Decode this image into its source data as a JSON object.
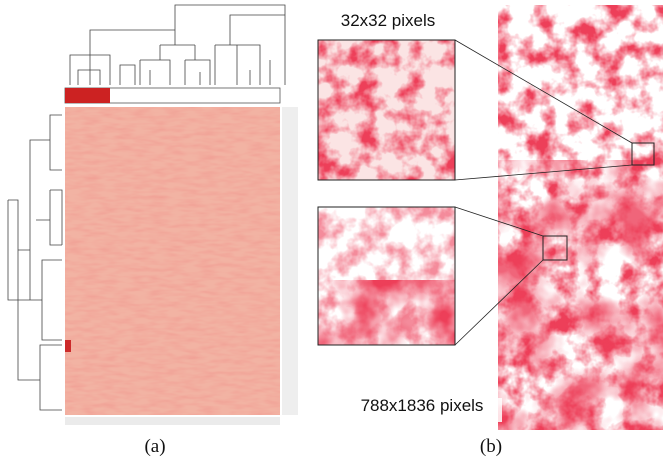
{
  "figure": {
    "panel_a": {
      "caption": "(a)"
    },
    "panel_b": {
      "caption": "(b)",
      "inset_label": "32x32 pixels",
      "image_label": "788x1836 pixels"
    }
  }
}
